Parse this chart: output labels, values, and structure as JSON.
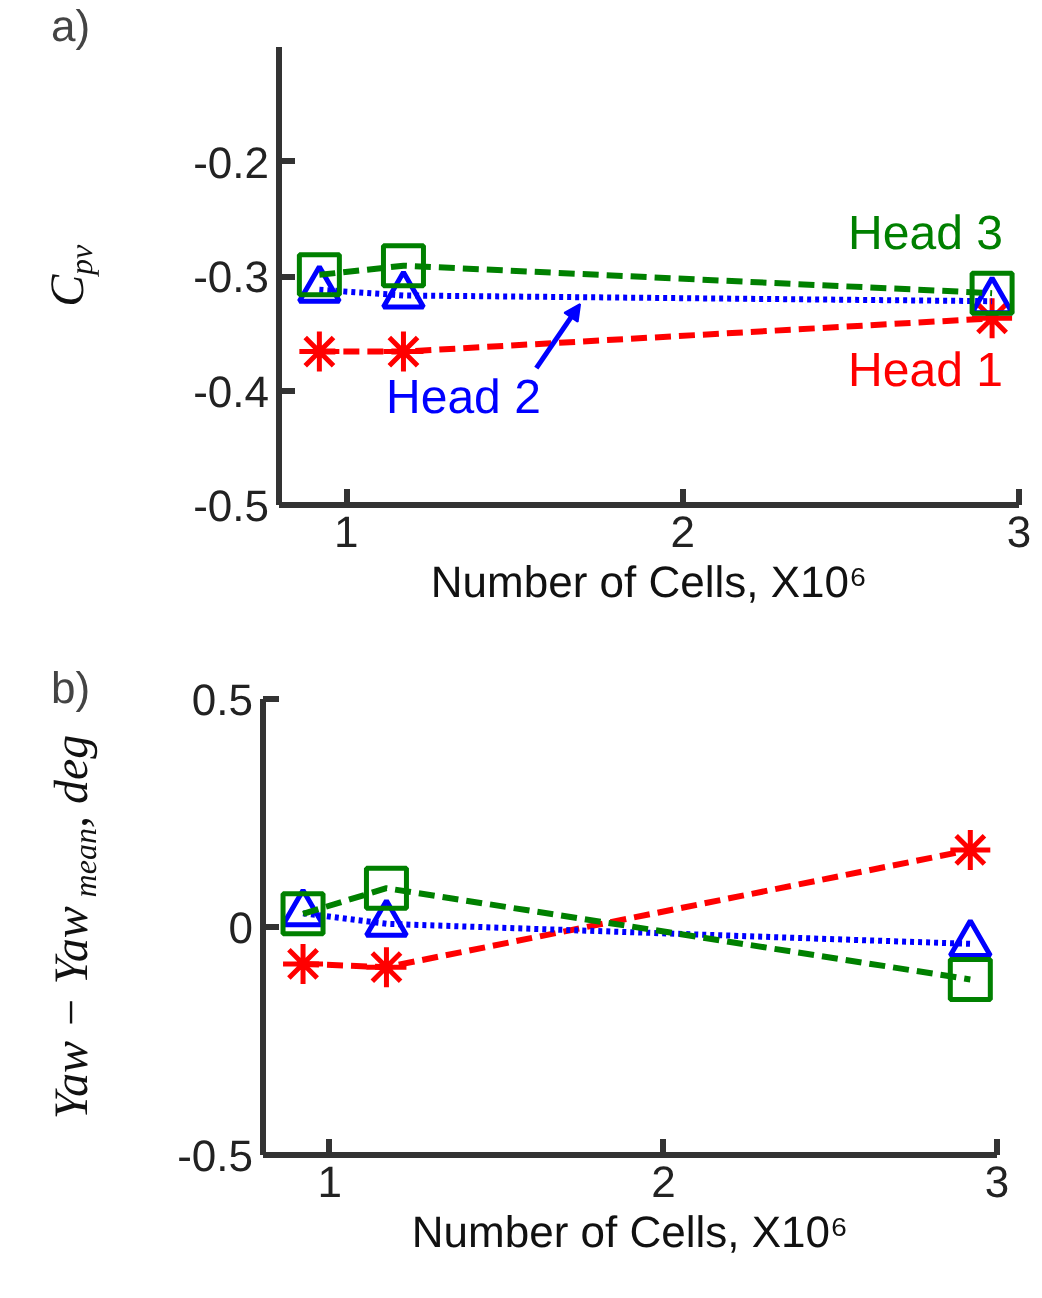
{
  "chart_data": [
    {
      "type": "line",
      "xlabel": "Number of Cells, X10⁶",
      "ylabel": "C$_{pv}$",
      "annotations": [
        "a)"
      ],
      "xlim": [
        0.8,
        3
      ],
      "xticks": [
        1,
        2,
        3
      ],
      "ylim": [
        -0.5,
        -0.1
      ],
      "yticks": [
        -0.5,
        -0.4,
        -0.3,
        -0.2
      ],
      "grid": false,
      "series": [
        {
          "name": "Head 1",
          "color": "#ff0000",
          "marker": "cross",
          "line_style": "dashed",
          "x": [
            0.92,
            1.17,
            2.92
          ],
          "values": [
            -0.366,
            -0.366,
            -0.337
          ]
        },
        {
          "name": "Head 2",
          "color": "#0000ff",
          "marker": "triangle",
          "line_style": "dotted",
          "x": [
            0.92,
            1.17,
            2.92
          ],
          "values": [
            -0.312,
            -0.317,
            -0.322
          ]
        },
        {
          "name": "Head 3",
          "color": "#008000",
          "marker": "square",
          "line_style": "dashed",
          "x": [
            0.92,
            1.17,
            2.92
          ],
          "values": [
            -0.299,
            -0.291,
            -0.315
          ]
        }
      ]
    },
    {
      "type": "line",
      "xlabel": "Number of Cells, X10⁶",
      "ylabel": "Yaw − Yaw$_{mean}$, deg",
      "annotations": [
        "b)"
      ],
      "xlim": [
        0.8,
        3
      ],
      "xticks": [
        1,
        2,
        3
      ],
      "ylim": [
        -0.5,
        0.5
      ],
      "yticks": [
        -0.5,
        0,
        0.5
      ],
      "grid": false,
      "series": [
        {
          "color": "#ff0000",
          "marker": "cross",
          "line_style": "dashed",
          "x": [
            0.92,
            1.17,
            2.92
          ],
          "values": [
            -0.081,
            -0.088,
            0.169
          ]
        },
        {
          "color": "#0000ff",
          "marker": "triangle",
          "line_style": "dotted",
          "x": [
            0.92,
            1.17,
            2.92
          ],
          "values": [
            0.03,
            0.007,
            -0.037
          ]
        },
        {
          "color": "#008000",
          "marker": "square",
          "line_style": "dashed",
          "x": [
            0.92,
            1.17,
            2.92
          ],
          "values": [
            0.029,
            0.085,
            -0.115
          ]
        }
      ]
    }
  ]
}
